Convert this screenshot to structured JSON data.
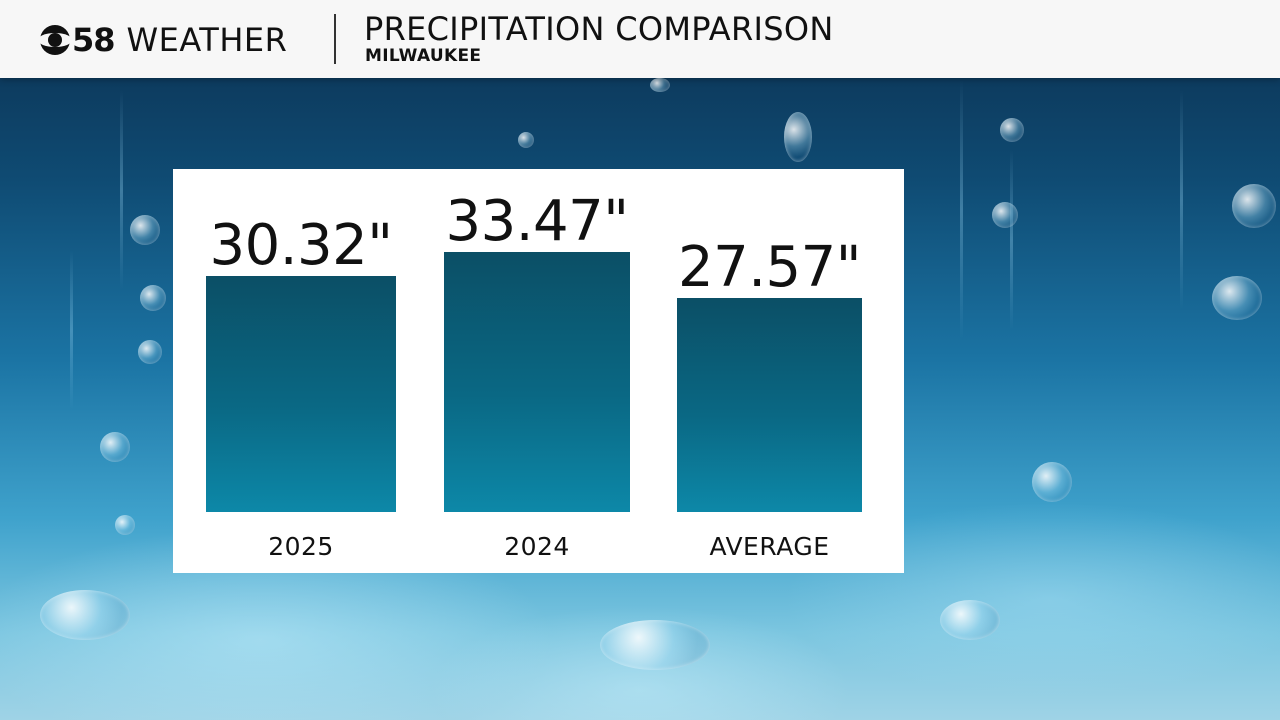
{
  "header": {
    "logo_number": "58",
    "logo_word": "WEATHER",
    "title": "PRECIPITATION COMPARISON",
    "subtitle": "MILWAUKEE"
  },
  "chart_data": {
    "type": "bar",
    "title": "PRECIPITATION COMPARISON",
    "subtitle": "MILWAUKEE",
    "categories": [
      "2025",
      "2024",
      "AVERAGE"
    ],
    "values": [
      30.32,
      33.47,
      27.57
    ],
    "data_labels": [
      "30.32\"",
      "33.47\"",
      "27.57\""
    ],
    "unit": "inches",
    "xlabel": "",
    "ylabel": "",
    "ylim": [
      0,
      33.47
    ],
    "grid": false,
    "legend": "none"
  },
  "colors": {
    "bar_top": "#0b4f66",
    "bar_bottom": "#0d88a8",
    "panel": "#ffffff",
    "header": "#f7f7f7"
  }
}
